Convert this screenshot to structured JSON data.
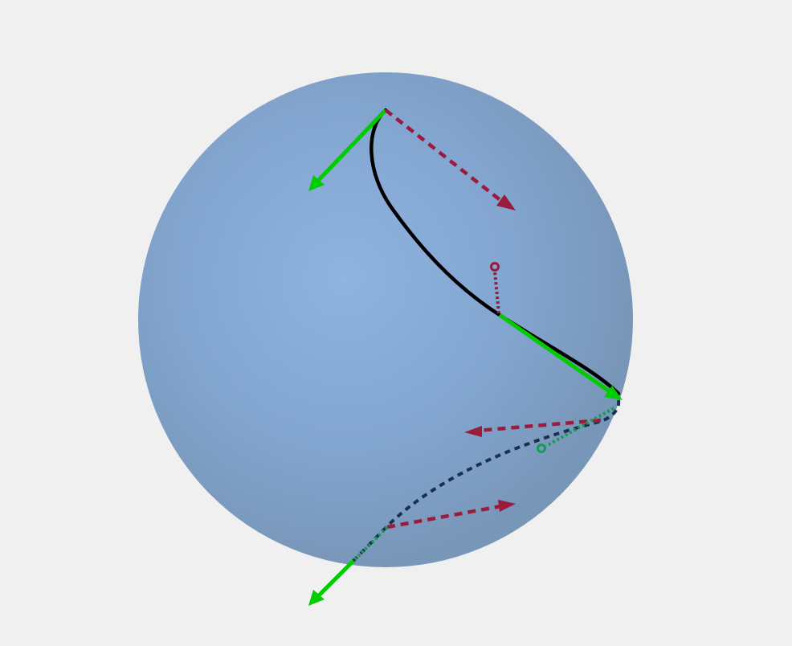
{
  "scene": {
    "background": "#f0f0f0",
    "sphere": {
      "highlight_color": "#8fb4e0",
      "mid_color": "#82a5cf",
      "edge_color": "#7896b8"
    },
    "colors": {
      "curve_front": "#000000",
      "curve_back": "#1b2f4f",
      "tangent_vector": "#00cc00",
      "tangent_vector_back": "#1a9a55",
      "normal_vector": "#9b1b3c"
    }
  }
}
